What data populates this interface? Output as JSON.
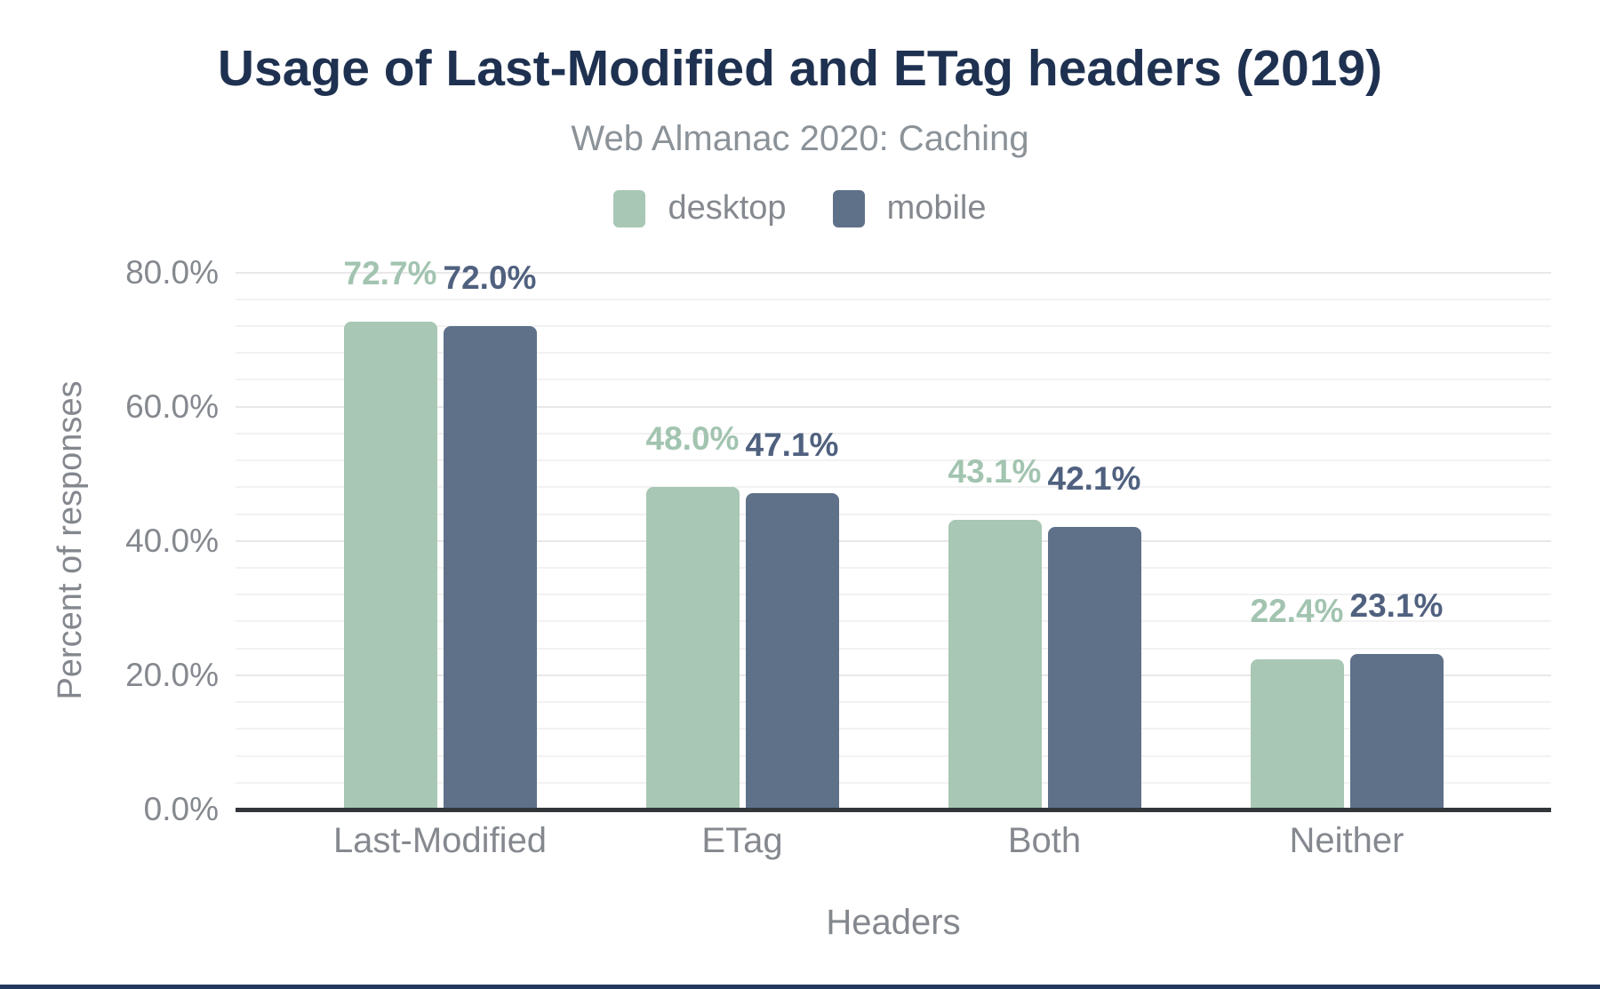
{
  "chart": {
    "title": "Usage of Last-Modified and ETag headers (2019)",
    "subtitle": "Web Almanac 2020: Caching",
    "y_axis_title": "Percent of responses",
    "x_axis_title": "Headers"
  },
  "chart_data": {
    "type": "bar",
    "title": "Usage of Last-Modified and ETag headers (2019)",
    "subtitle": "Web Almanac 2020: Caching",
    "categories": [
      "Last-Modified",
      "ETag",
      "Both",
      "Neither"
    ],
    "series": [
      {
        "name": "desktop",
        "color": "#a8c7b4",
        "label_color": "#a2c4b0",
        "values": [
          72.7,
          48.0,
          43.1,
          22.4
        ]
      },
      {
        "name": "mobile",
        "color": "#5f7189",
        "label_color": "#50617f",
        "values": [
          72.0,
          47.1,
          42.1,
          23.1
        ]
      }
    ],
    "data_labels": [
      [
        "72.7%",
        "48.0%",
        "43.1%",
        "22.4%"
      ],
      [
        "72.0%",
        "47.1%",
        "42.1%",
        "23.1%"
      ]
    ],
    "xlabel": "Headers",
    "ylabel": "Percent of responses",
    "ylim": [
      0,
      80
    ],
    "ytick_step": 20,
    "minor_gridline_step": 4,
    "ytick_labels": [
      "0.0%",
      "20.0%",
      "40.0%",
      "60.0%",
      "80.0%"
    ],
    "grid": true,
    "legend_position": "top",
    "value_suffix": "%"
  }
}
